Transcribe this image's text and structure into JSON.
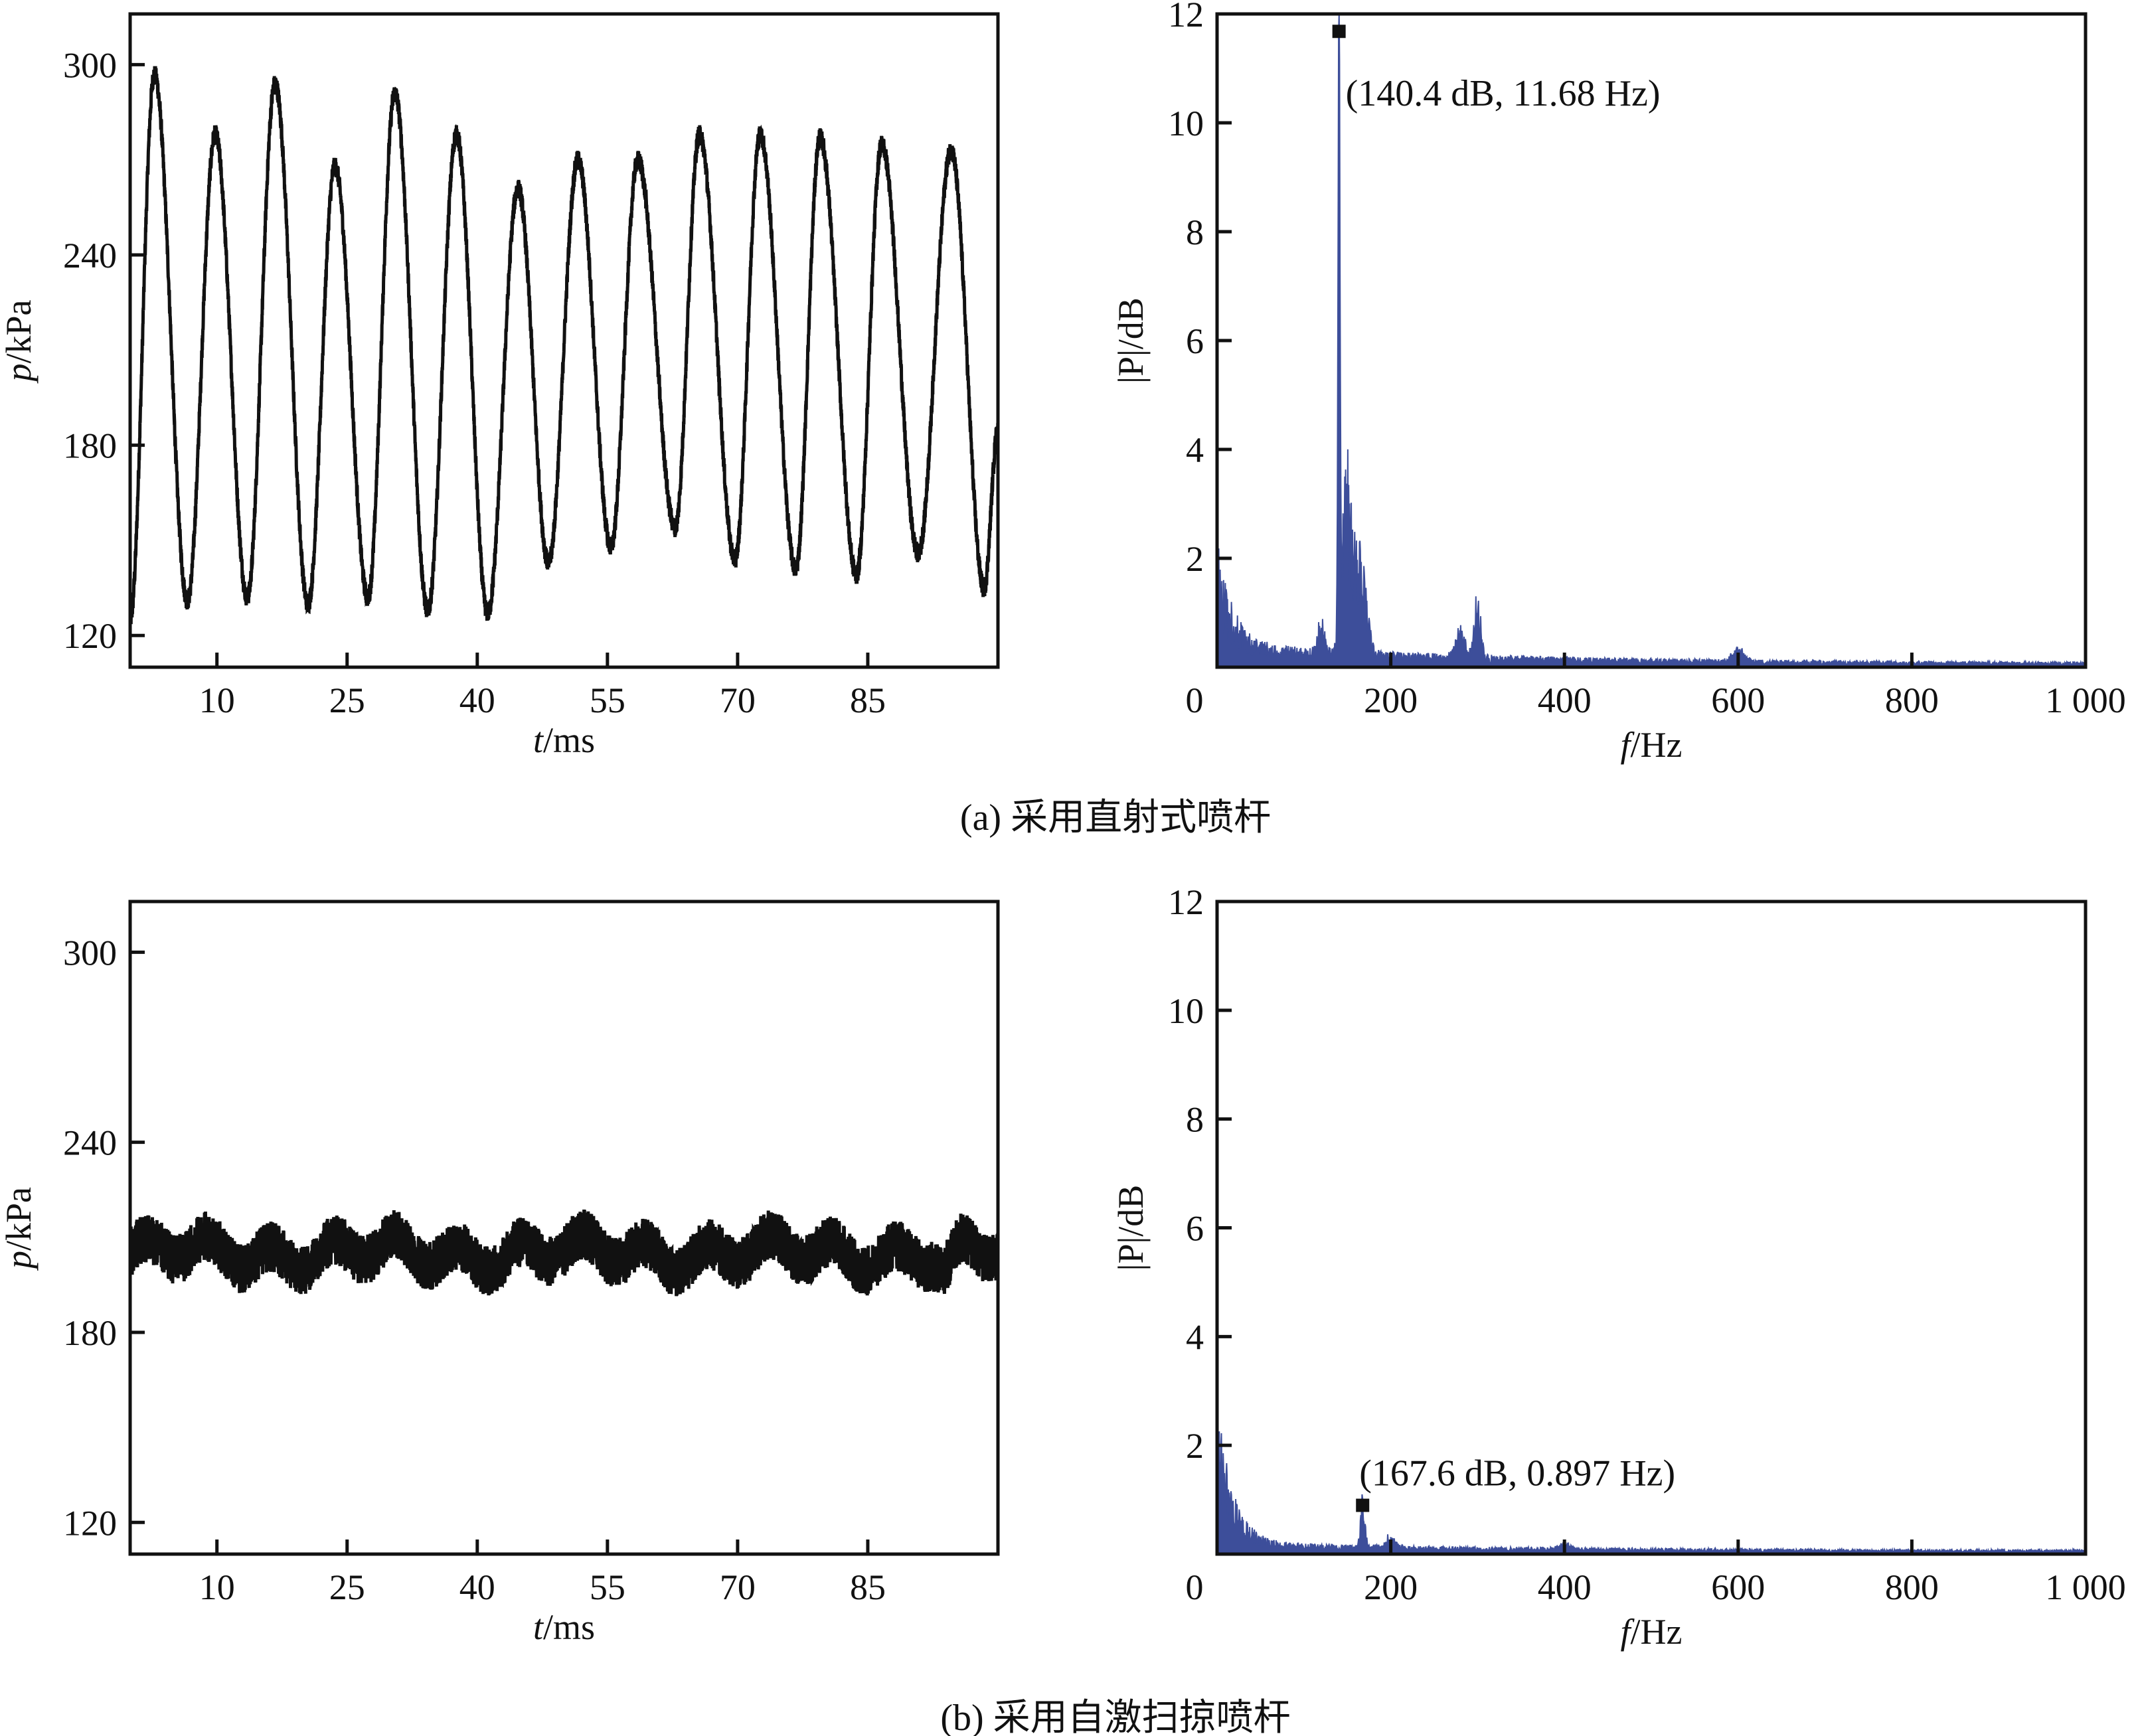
{
  "colors": {
    "pressure_line": "#111111",
    "spectrum_fill": "#3d4e9a",
    "marker": "#111111"
  },
  "captions": {
    "a": "(a) 采用直射式喷杆",
    "b": "(b) 采用自激扫掠喷杆"
  },
  "chart_data": [
    {
      "id": "a-time",
      "type": "line",
      "xlabel_italic": "t",
      "xlabel_unit": "/ms",
      "ylabel_italic": "p",
      "ylabel_unit": "/kPa",
      "xlim": [
        0,
        100
      ],
      "ylim": [
        110,
        316
      ],
      "xticks": [
        10,
        25,
        40,
        55,
        70,
        85
      ],
      "yticks": [
        120,
        180,
        240,
        300
      ],
      "grid": false,
      "extrema": [
        [
          0,
          125
        ],
        [
          2.8,
          297
        ],
        [
          6.6,
          131
        ],
        [
          9.8,
          278
        ],
        [
          13.5,
          132
        ],
        [
          16.7,
          294
        ],
        [
          20.5,
          130
        ],
        [
          23.6,
          268
        ],
        [
          27.4,
          132
        ],
        [
          30.5,
          291
        ],
        [
          34.3,
          128
        ],
        [
          37.6,
          278
        ],
        [
          41.2,
          127
        ],
        [
          44.7,
          261
        ],
        [
          48.2,
          143
        ],
        [
          51.6,
          270
        ],
        [
          55.4,
          148
        ],
        [
          58.5,
          270
        ],
        [
          62.8,
          154
        ],
        [
          65.6,
          278
        ],
        [
          69.7,
          144
        ],
        [
          72.6,
          278
        ],
        [
          76.7,
          141
        ],
        [
          79.5,
          277
        ],
        [
          83.7,
          139
        ],
        [
          86.6,
          275
        ],
        [
          90.8,
          146
        ],
        [
          94.6,
          273
        ],
        [
          98.4,
          135
        ],
        [
          100,
          185
        ]
      ]
    },
    {
      "id": "a-spectrum",
      "type": "area",
      "xlabel_italic": "f",
      "xlabel_unit": "/Hz",
      "ylabel": "|P|/dB",
      "xlim": [
        0,
        1000
      ],
      "ylim": [
        0,
        12
      ],
      "xticks": [
        0,
        200,
        400,
        600,
        800,
        1000
      ],
      "xtick_labels": [
        "0",
        "200",
        "400",
        "600",
        "800",
        "1 000"
      ],
      "yticks": [
        2,
        4,
        6,
        8,
        10,
        12
      ],
      "grid": false,
      "low_freq_start": 1.3,
      "peaks": [
        [
          140.4,
          11.68,
          1.5
        ],
        [
          150,
          3.0,
          8
        ],
        [
          165,
          1.6,
          10
        ],
        [
          120,
          0.5,
          6
        ],
        [
          280,
          0.5,
          8
        ],
        [
          300,
          1.1,
          5
        ],
        [
          600,
          0.22,
          10
        ]
      ],
      "marker": [
        140.4,
        11.68
      ],
      "annotation": "(140.4 dB, 11.68 Hz)"
    },
    {
      "id": "b-time",
      "type": "line",
      "xlabel_italic": "t",
      "xlabel_unit": "/ms",
      "ylabel_italic": "p",
      "ylabel_unit": "/kPa",
      "xlim": [
        0,
        100
      ],
      "ylim": [
        110,
        316
      ],
      "xticks": [
        10,
        25,
        40,
        55,
        70,
        85
      ],
      "yticks": [
        120,
        180,
        240,
        300
      ],
      "grid": false,
      "mean": 205,
      "oscillation_amplitude": 4,
      "band_halfwidth": 8,
      "dip": [
        94,
        192
      ]
    },
    {
      "id": "b-spectrum",
      "type": "area",
      "xlabel_italic": "f",
      "xlabel_unit": "/Hz",
      "ylabel": "|P|/dB",
      "xlim": [
        0,
        1000
      ],
      "ylim": [
        0,
        12
      ],
      "xticks": [
        0,
        200,
        400,
        600,
        800,
        1000
      ],
      "xtick_labels": [
        "0",
        "200",
        "400",
        "600",
        "800",
        "1 000"
      ],
      "yticks": [
        2,
        4,
        6,
        8,
        10,
        12
      ],
      "grid": false,
      "low_freq_start": 1.8,
      "peaks": [
        [
          167.6,
          0.75,
          4
        ],
        [
          200,
          0.2,
          8
        ],
        [
          400,
          0.1,
          10
        ]
      ],
      "marker": [
        167.6,
        0.897
      ],
      "annotation": "(167.6 dB, 0.897 Hz)"
    }
  ]
}
